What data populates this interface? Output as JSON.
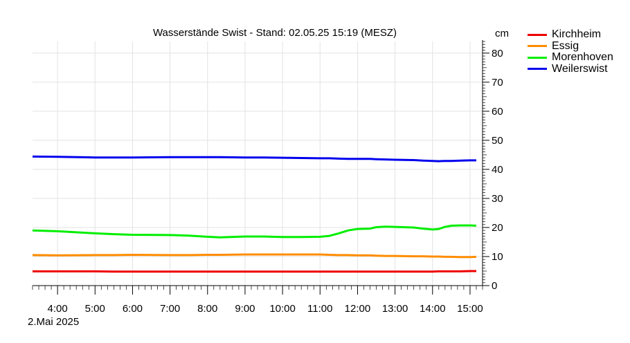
{
  "chart_data": {
    "type": "line",
    "title": "Wasserstände Swist - Stand: 02.05.25 15:19 (MESZ)",
    "ylabel": "cm",
    "date_label": "2.Mai 2025",
    "ylim": [
      0,
      84
    ],
    "xlim": [
      "03:20",
      "15:20"
    ],
    "x_ticks": [
      "4:00",
      "5:00",
      "6:00",
      "7:00",
      "8:00",
      "9:00",
      "10:00",
      "11:00",
      "12:00",
      "13:00",
      "14:00",
      "15:00"
    ],
    "y_ticks": [
      "0",
      "10",
      "20",
      "30",
      "40",
      "50",
      "60",
      "70",
      "80"
    ],
    "grid": true,
    "legend_position": "top-right, outside plot",
    "x": [
      "03:20",
      "04:00",
      "05:00",
      "05:30",
      "06:00",
      "07:00",
      "07:30",
      "08:00",
      "08:20",
      "09:00",
      "09:30",
      "10:00",
      "10:30",
      "11:00",
      "11:15",
      "11:30",
      "11:45",
      "12:00",
      "12:20",
      "12:30",
      "12:45",
      "13:00",
      "13:30",
      "13:45",
      "14:00",
      "14:10",
      "14:20",
      "14:30",
      "14:45",
      "15:00",
      "15:10"
    ],
    "series": [
      {
        "name": "Kirchheim",
        "color": "#ee0000",
        "values": [
          4.9,
          4.9,
          4.9,
          4.8,
          4.8,
          4.8,
          4.8,
          4.8,
          4.8,
          4.8,
          4.8,
          4.8,
          4.8,
          4.8,
          4.8,
          4.8,
          4.8,
          4.8,
          4.8,
          4.8,
          4.8,
          4.8,
          4.8,
          4.8,
          4.8,
          4.9,
          4.9,
          4.9,
          4.9,
          5.0,
          5.0
        ]
      },
      {
        "name": "Essig",
        "color": "#ff8c00",
        "values": [
          10.5,
          10.4,
          10.5,
          10.5,
          10.6,
          10.5,
          10.5,
          10.6,
          10.6,
          10.7,
          10.7,
          10.7,
          10.7,
          10.7,
          10.6,
          10.5,
          10.5,
          10.4,
          10.4,
          10.3,
          10.2,
          10.2,
          10.1,
          10.1,
          10.0,
          10.0,
          9.9,
          9.9,
          9.8,
          9.8,
          9.9
        ]
      },
      {
        "name": "Morenhoven",
        "color": "#00ee00",
        "values": [
          19.0,
          18.7,
          18.0,
          17.7,
          17.5,
          17.4,
          17.2,
          16.8,
          16.6,
          16.9,
          16.9,
          16.7,
          16.7,
          16.8,
          17.1,
          18.0,
          19.0,
          19.5,
          19.6,
          20.1,
          20.3,
          20.2,
          20.0,
          19.6,
          19.3,
          19.5,
          20.2,
          20.6,
          20.7,
          20.7,
          20.6
        ]
      },
      {
        "name": "Weilerswist",
        "color": "#0000ee",
        "values": [
          44.4,
          44.3,
          44.1,
          44.1,
          44.1,
          44.2,
          44.2,
          44.2,
          44.2,
          44.1,
          44.1,
          44.0,
          43.9,
          43.8,
          43.8,
          43.7,
          43.6,
          43.6,
          43.6,
          43.5,
          43.4,
          43.3,
          43.2,
          43.0,
          42.9,
          42.8,
          42.9,
          42.9,
          43.0,
          43.1,
          43.1
        ]
      }
    ]
  }
}
